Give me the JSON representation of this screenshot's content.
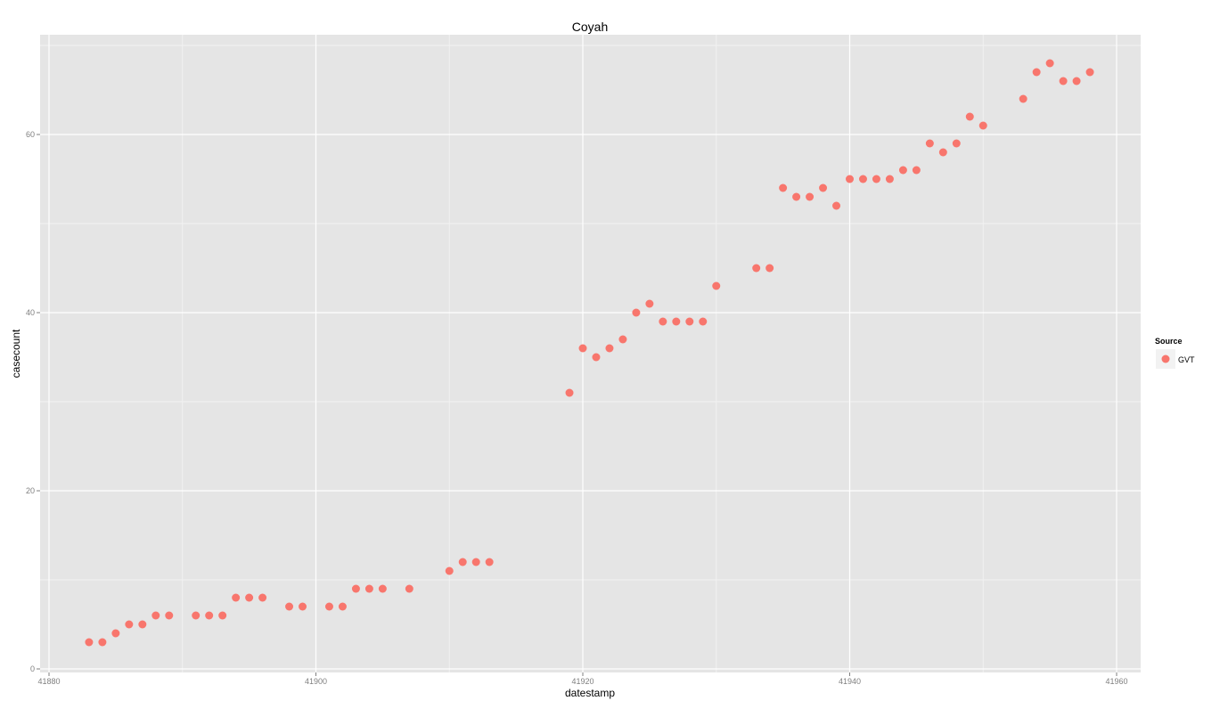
{
  "chart_data": {
    "type": "scatter",
    "title": "Coyah",
    "xlabel": "datestamp",
    "ylabel": "casecount",
    "xlim": [
      41880,
      41960
    ],
    "ylim": [
      0,
      70
    ],
    "x_ticks": [
      41880,
      41900,
      41920,
      41940,
      41960
    ],
    "y_ticks": [
      0,
      20,
      40,
      60
    ],
    "grid": true,
    "legend": {
      "title": "Source",
      "position": "right"
    },
    "series": [
      {
        "name": "GVT",
        "color": "#F8766D",
        "x": [
          41883,
          41884,
          41885,
          41886,
          41887,
          41888,
          41889,
          41891,
          41892,
          41893,
          41894,
          41895,
          41896,
          41898,
          41899,
          41901,
          41902,
          41903,
          41904,
          41905,
          41907,
          41910,
          41911,
          41912,
          41913,
          41919,
          41920,
          41921,
          41922,
          41923,
          41924,
          41925,
          41926,
          41927,
          41928,
          41929,
          41930,
          41933,
          41934,
          41935,
          41936,
          41937,
          41938,
          41939,
          41940,
          41941,
          41942,
          41943,
          41944,
          41945,
          41946,
          41947,
          41948,
          41949,
          41950,
          41953,
          41954,
          41955,
          41956,
          41957,
          41958
        ],
        "y": [
          3,
          3,
          4,
          5,
          5,
          6,
          6,
          6,
          6,
          6,
          8,
          8,
          8,
          7,
          7,
          7,
          7,
          9,
          9,
          9,
          9,
          11,
          12,
          12,
          12,
          31,
          36,
          35,
          36,
          37,
          40,
          41,
          39,
          39,
          39,
          39,
          43,
          45,
          45,
          54,
          53,
          53,
          54,
          52,
          55,
          55,
          55,
          55,
          56,
          56,
          59,
          58,
          59,
          62,
          61,
          64,
          67,
          68,
          66,
          66,
          67
        ]
      }
    ]
  }
}
